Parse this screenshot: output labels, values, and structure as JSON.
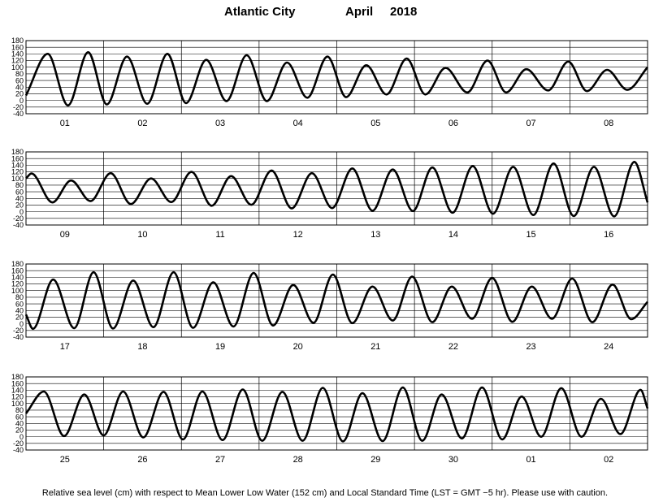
{
  "title": {
    "station": "Atlantic City",
    "month": "April",
    "year": "2018"
  },
  "footnote": "Relative sea level (cm) with respect to Mean Lower Low Water (152 cm) and Local Standard Time (LST = GMT −5 hr). Please use with caution.",
  "chart_data": {
    "type": "line",
    "ylim": [
      -40,
      180
    ],
    "yticks": [
      -40,
      -20,
      0,
      20,
      40,
      60,
      80,
      100,
      120,
      140,
      160,
      180
    ],
    "grid": true,
    "ylabel": "",
    "xlabel": "",
    "units": "cm",
    "panels": [
      {
        "days": [
          "01",
          "02",
          "03",
          "04",
          "05",
          "06",
          "07",
          "08"
        ],
        "x": [
          0,
          0.28,
          0.54,
          0.8,
          1.04,
          1.3,
          1.56,
          1.82,
          2.06,
          2.32,
          2.58,
          2.84,
          3.1,
          3.36,
          3.62,
          3.88,
          4.12,
          4.38,
          4.64,
          4.9,
          5.14,
          5.4,
          5.68,
          5.94,
          6.18,
          6.44,
          6.72,
          6.98,
          7.22,
          7.48,
          7.74,
          8.0
        ],
        "y": [
          15,
          140,
          -15,
          145,
          -12,
          132,
          -10,
          140,
          -8,
          122,
          -2,
          136,
          -2,
          114,
          8,
          132,
          10,
          106,
          18,
          126,
          18,
          98,
          24,
          120,
          24,
          94,
          30,
          117,
          28,
          92,
          32,
          100
        ]
      },
      {
        "days": [
          "09",
          "10",
          "11",
          "12",
          "13",
          "14",
          "15",
          "16"
        ],
        "x": [
          0,
          0.07,
          0.34,
          0.58,
          0.83,
          1.09,
          1.35,
          1.61,
          1.87,
          2.13,
          2.39,
          2.64,
          2.9,
          3.16,
          3.42,
          3.68,
          3.94,
          4.2,
          4.46,
          4.72,
          4.98,
          5.23,
          5.49,
          5.75,
          6.01,
          6.27,
          6.53,
          6.79,
          7.05,
          7.31,
          7.57,
          7.83,
          8.0
        ],
        "y": [
          100,
          115,
          28,
          94,
          32,
          116,
          23,
          100,
          29,
          120,
          18,
          107,
          21,
          124,
          10,
          116,
          11,
          130,
          3,
          127,
          2,
          133,
          -3,
          137,
          -6,
          135,
          -10,
          145,
          -13,
          135,
          -14,
          150,
          28
        ]
      },
      {
        "days": [
          "17",
          "18",
          "19",
          "20",
          "21",
          "22",
          "23",
          "24"
        ],
        "x": [
          0,
          0.09,
          0.35,
          0.62,
          0.87,
          1.12,
          1.38,
          1.64,
          1.9,
          2.15,
          2.41,
          2.67,
          2.93,
          3.18,
          3.44,
          3.7,
          3.95,
          4.2,
          4.46,
          4.72,
          4.97,
          5.23,
          5.48,
          5.74,
          6.0,
          6.26,
          6.51,
          6.77,
          7.03,
          7.29,
          7.55,
          7.79,
          8.0
        ],
        "y": [
          28,
          -15,
          133,
          -13,
          155,
          -14,
          130,
          -10,
          155,
          -12,
          125,
          -8,
          153,
          -5,
          117,
          3,
          148,
          2,
          112,
          10,
          142,
          5,
          112,
          15,
          138,
          6,
          112,
          15,
          136,
          5,
          118,
          14,
          66
        ]
      },
      {
        "days": [
          "25",
          "26",
          "27",
          "28",
          "29",
          "30",
          "01",
          "02"
        ],
        "x": [
          0,
          0.23,
          0.49,
          0.75,
          1.0,
          1.25,
          1.51,
          1.77,
          2.02,
          2.27,
          2.53,
          2.79,
          3.04,
          3.3,
          3.56,
          3.82,
          4.08,
          4.33,
          4.59,
          4.85,
          5.1,
          5.35,
          5.61,
          5.87,
          6.13,
          6.38,
          6.63,
          6.89,
          7.15,
          7.4,
          7.65,
          7.91,
          8.0
        ],
        "y": [
          70,
          136,
          2,
          127,
          4,
          136,
          -2,
          135,
          -8,
          136,
          -10,
          142,
          -12,
          135,
          -12,
          147,
          -14,
          131,
          -13,
          148,
          -12,
          127,
          -5,
          148,
          -8,
          121,
          0,
          146,
          0,
          114,
          8,
          141,
          85
        ]
      }
    ]
  }
}
